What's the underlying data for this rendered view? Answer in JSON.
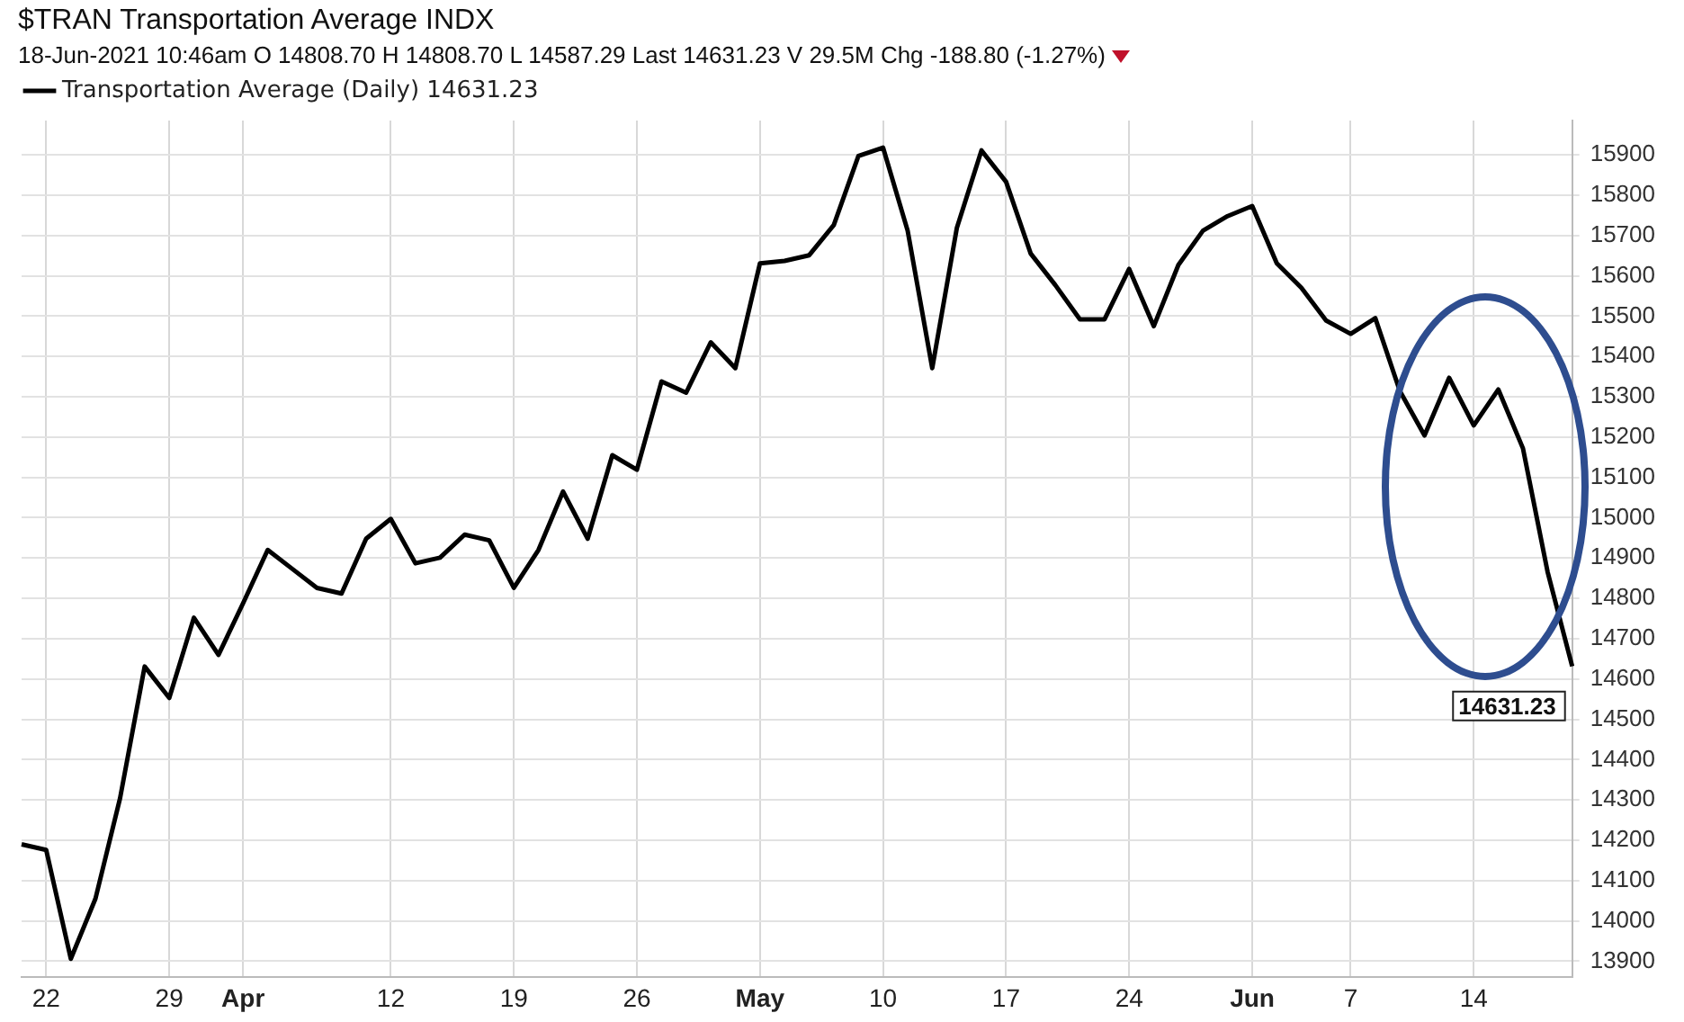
{
  "chart_data": {
    "type": "line",
    "title": "$TRAN Transportation Average INDX",
    "subtitle": "18-Jun-2021 10:46am    O 14808.70  H 14808.70  L 14587.29  Last 14631.23  V 29.5M  Chg -188.80 (-1.27%)",
    "categories": [
      null,
      "22",
      null,
      null,
      null,
      null,
      "29",
      null,
      null,
      "Apr",
      null,
      null,
      null,
      null,
      null,
      "12",
      null,
      null,
      null,
      null,
      "19",
      null,
      null,
      null,
      null,
      "26",
      null,
      null,
      null,
      null,
      "May",
      null,
      null,
      null,
      null,
      "10",
      null,
      null,
      null,
      null,
      "17",
      null,
      null,
      null,
      null,
      "24",
      null,
      null,
      null,
      null,
      "Jun",
      null,
      null,
      null,
      "7",
      null,
      null,
      null,
      null,
      "14",
      null,
      null,
      null,
      null
    ],
    "series": [
      {
        "name": "Transportation Average (Daily) 14631.23",
        "color": "#000000",
        "values": [
          14190,
          14176,
          13906,
          14055,
          14304,
          14631,
          14553,
          14752,
          14660,
          14788,
          14920,
          14873,
          14826,
          14812,
          14948,
          14997,
          14887,
          14901,
          14958,
          14944,
          14826,
          14920,
          15065,
          14948,
          15155,
          15119,
          15338,
          15310,
          15435,
          15371,
          15631,
          15637,
          15651,
          15726,
          15897,
          15918,
          15712,
          15371,
          15719,
          15911,
          15833,
          15655,
          15577,
          15492,
          15492,
          15617,
          15475,
          15627,
          15712,
          15748,
          15773,
          15631,
          15570,
          15489,
          15456,
          15495,
          15314,
          15204,
          15347,
          15229,
          15318,
          15172,
          14866,
          14631.23
        ]
      }
    ],
    "ylim": [
      13860,
      15985
    ],
    "yticks": [
      13900,
      14000,
      14100,
      14200,
      14300,
      14400,
      14500,
      14600,
      14700,
      14800,
      14900,
      15000,
      15100,
      15200,
      15300,
      15400,
      15500,
      15600,
      15700,
      15800,
      15900
    ],
    "grid": true,
    "legend": "top left",
    "marker": "none",
    "annotations": [
      "14631.23"
    ]
  }
}
